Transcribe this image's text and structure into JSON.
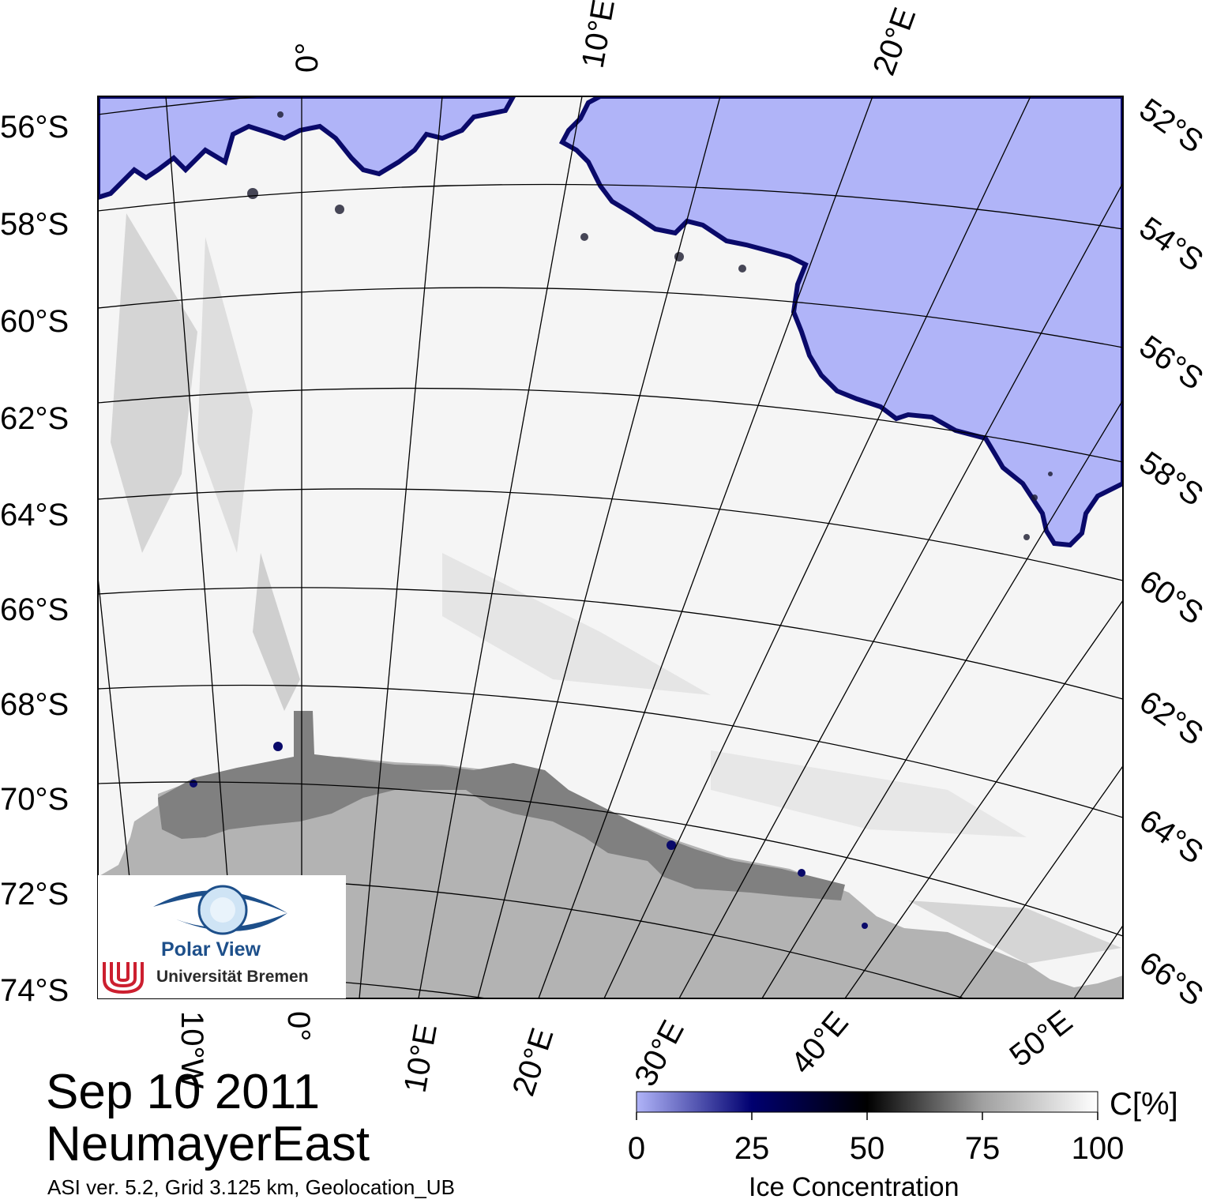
{
  "date": "Sep 10 2011",
  "region": "NeumayerEast",
  "info": "ASI ver. 5.2,  Grid 3.125 km, Geolocation_UB",
  "colorbar": {
    "title": "Ice Concentration",
    "unit": "C[%]",
    "ticks": [
      "0",
      "25",
      "50",
      "75",
      "100"
    ],
    "stops": [
      "#b0b4f8",
      "#000070",
      "#000000",
      "#a0a0a0",
      "#ffffff"
    ]
  },
  "latitude_labels_left": [
    "56°S",
    "58°S",
    "60°S",
    "62°S",
    "64°S",
    "66°S",
    "68°S",
    "70°S",
    "72°S",
    "74°S"
  ],
  "latitude_labels_right": [
    "52°S",
    "54°S",
    "56°S",
    "58°S",
    "60°S",
    "62°S",
    "64°S",
    "66°S"
  ],
  "longitude_labels_top": [
    "0°",
    "10°E",
    "20°E"
  ],
  "longitude_labels_bottom": [
    "10°W",
    "0°",
    "10°E",
    "20°E",
    "30°E",
    "40°E",
    "50°E"
  ],
  "logo": {
    "title": "Polar View",
    "subtitle": "Universität Bremen"
  },
  "colors": {
    "open_water": "#b0b4f8",
    "ice_edge": "#0a0a6a",
    "sea_ice": "#f5f5f5",
    "ice_shelf": "#808080",
    "land": "#b3b3b3"
  }
}
